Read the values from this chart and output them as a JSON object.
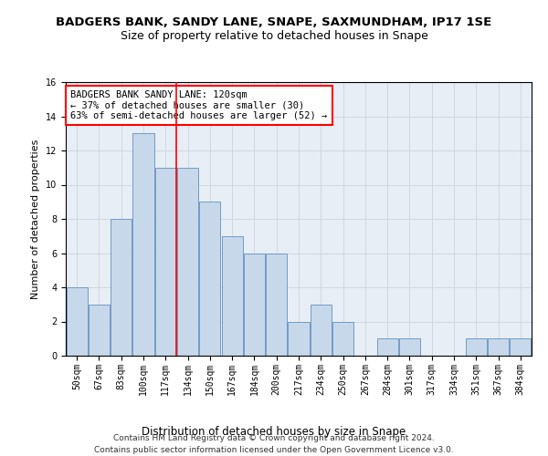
{
  "title1": "BADGERS BANK, SANDY LANE, SNAPE, SAXMUNDHAM, IP17 1SE",
  "title2": "Size of property relative to detached houses in Snape",
  "xlabel": "Distribution of detached houses by size in Snape",
  "ylabel": "Number of detached properties",
  "categories": [
    "50sqm",
    "67sqm",
    "83sqm",
    "100sqm",
    "117sqm",
    "134sqm",
    "150sqm",
    "167sqm",
    "184sqm",
    "200sqm",
    "217sqm",
    "234sqm",
    "250sqm",
    "267sqm",
    "284sqm",
    "301sqm",
    "317sqm",
    "334sqm",
    "351sqm",
    "367sqm",
    "384sqm"
  ],
  "values": [
    4,
    3,
    8,
    13,
    11,
    11,
    9,
    7,
    6,
    6,
    2,
    3,
    2,
    0,
    1,
    1,
    0,
    0,
    1,
    1,
    1
  ],
  "bar_color": "#c8d8eb",
  "bar_edge_color": "#6090c0",
  "annotation_text": "BADGERS BANK SANDY LANE: 120sqm\n← 37% of detached houses are smaller (30)\n63% of semi-detached houses are larger (52) →",
  "annotation_box_color": "white",
  "annotation_box_edge": "red",
  "vline_color": "red",
  "ylim": [
    0,
    16
  ],
  "yticks": [
    0,
    2,
    4,
    6,
    8,
    10,
    12,
    14,
    16
  ],
  "footer": "Contains HM Land Registry data © Crown copyright and database right 2024.\nContains public sector information licensed under the Open Government Licence v3.0.",
  "background_color": "#e8eef5",
  "grid_color": "#c5cdd8",
  "title1_fontsize": 9.5,
  "title2_fontsize": 9,
  "xlabel_fontsize": 8.5,
  "ylabel_fontsize": 8,
  "tick_fontsize": 7,
  "annotation_fontsize": 7.5,
  "footer_fontsize": 6.5
}
